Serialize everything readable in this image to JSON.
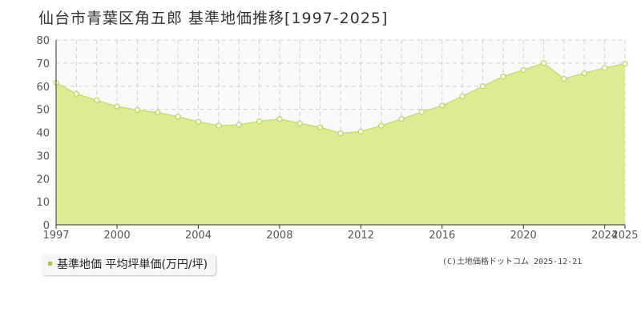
{
  "title": "仙台市青葉区角五郎 基準地価推移[1997-2025]",
  "legend": {
    "label": "基準地価 平均坪単価(万円/坪)"
  },
  "copyright": "(C)土地価格ドットコム 2025-12-21",
  "colors": {
    "fill": "#dcec92",
    "line": "#c7e066",
    "marker_stroke": "#b5d94f",
    "legend_swatch": "#9acd32"
  },
  "chart_data": {
    "type": "area",
    "x": [
      1997,
      1998,
      1999,
      2000,
      2001,
      2002,
      2003,
      2004,
      2005,
      2006,
      2007,
      2008,
      2009,
      2010,
      2011,
      2012,
      2013,
      2014,
      2015,
      2016,
      2017,
      2018,
      2019,
      2020,
      2021,
      2022,
      2023,
      2024,
      2025
    ],
    "series": [
      {
        "name": "基準地価 平均坪単価(万円/坪)",
        "values": [
          61.5,
          56.7,
          53.9,
          51.2,
          49.7,
          48.6,
          46.8,
          44.6,
          42.9,
          43.3,
          44.8,
          45.8,
          43.9,
          42.2,
          39.6,
          40.4,
          42.9,
          45.8,
          48.8,
          51.6,
          55.6,
          60.0,
          64.2,
          67.0,
          70.0,
          63.2,
          65.6,
          67.9,
          69.7
        ]
      }
    ],
    "xticks": [
      "1997",
      "2000",
      "2004",
      "2008",
      "2012",
      "2016",
      "2020",
      "2024",
      "2025"
    ],
    "yticks": [
      0,
      10,
      20,
      30,
      40,
      50,
      60,
      70,
      80
    ],
    "ylim": [
      0,
      80
    ],
    "xlim": [
      1997,
      2025
    ],
    "grid": true
  }
}
